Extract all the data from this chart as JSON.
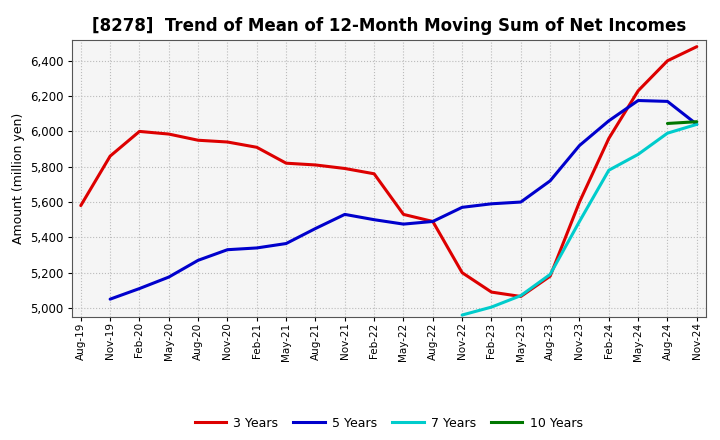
{
  "title": "[8278]  Trend of Mean of 12-Month Moving Sum of Net Incomes",
  "ylabel": "Amount (million yen)",
  "ylim": [
    4950,
    6520
  ],
  "yticks": [
    5000,
    5200,
    5400,
    5600,
    5800,
    6000,
    6200,
    6400
  ],
  "x_labels": [
    "Aug-19",
    "Nov-19",
    "Feb-20",
    "May-20",
    "Aug-20",
    "Nov-20",
    "Feb-21",
    "May-21",
    "Aug-21",
    "Nov-21",
    "Feb-22",
    "May-22",
    "Aug-22",
    "Nov-22",
    "Feb-23",
    "May-23",
    "Aug-23",
    "Nov-23",
    "Feb-24",
    "May-24",
    "Aug-24",
    "Nov-24"
  ],
  "series": {
    "3 Years": {
      "color": "#dd0000",
      "data": [
        5580,
        5860,
        6000,
        5985,
        5950,
        5940,
        5910,
        5820,
        5810,
        5790,
        5760,
        5530,
        5490,
        5200,
        5090,
        5065,
        5180,
        5600,
        5960,
        6230,
        6400,
        6480
      ]
    },
    "5 Years": {
      "color": "#0000cc",
      "data": [
        null,
        5050,
        5110,
        5175,
        5270,
        5330,
        5340,
        5365,
        5450,
        5530,
        5500,
        5475,
        5490,
        5570,
        5590,
        5600,
        5720,
        5920,
        6060,
        6175,
        6170,
        6040
      ]
    },
    "7 Years": {
      "color": "#00cccc",
      "data": [
        null,
        null,
        null,
        null,
        null,
        null,
        null,
        null,
        null,
        null,
        null,
        null,
        null,
        4960,
        5005,
        5070,
        5190,
        5490,
        5780,
        5870,
        5990,
        6040
      ]
    },
    "10 Years": {
      "color": "#007700",
      "data": [
        null,
        null,
        null,
        null,
        null,
        null,
        null,
        null,
        null,
        null,
        null,
        null,
        null,
        null,
        null,
        null,
        null,
        null,
        null,
        null,
        6045,
        6055
      ]
    }
  },
  "background_color": "#ffffff",
  "plot_bg_color": "#f5f5f5",
  "grid_color": "#bbbbbb",
  "title_fontsize": 12,
  "legend_items": [
    "3 Years",
    "5 Years",
    "7 Years",
    "10 Years"
  ],
  "legend_colors": [
    "#dd0000",
    "#0000cc",
    "#00cccc",
    "#007700"
  ]
}
